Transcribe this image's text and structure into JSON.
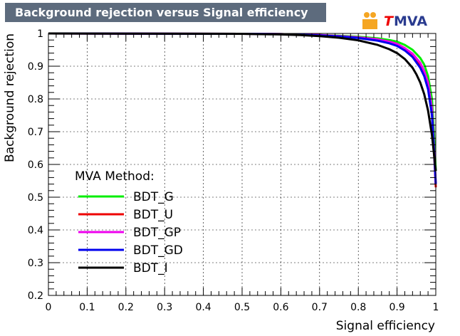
{
  "title": "Background rejection versus Signal efficiency",
  "logo_text": "MVA",
  "logo_letter": "T",
  "chart_data": {
    "type": "line",
    "title": "Background rejection versus Signal efficiency",
    "xlabel": "Signal efficiency",
    "ylabel": "Background rejection",
    "xlim": [
      0,
      1
    ],
    "ylim": [
      0.2,
      1
    ],
    "xticks": [
      "0",
      "0.1",
      "0.2",
      "0.3",
      "0.4",
      "0.5",
      "0.6",
      "0.7",
      "0.8",
      "0.9",
      "1"
    ],
    "yticks": [
      "0.2",
      "0.3",
      "0.4",
      "0.5",
      "0.6",
      "0.7",
      "0.8",
      "0.9",
      "1"
    ],
    "grid": true,
    "legend_title": "MVA Method:",
    "legend_position": "left-middle",
    "series": [
      {
        "name": "BDT_G",
        "color": "#00ee00",
        "x": [
          0,
          0.5,
          0.6,
          0.7,
          0.75,
          0.8,
          0.85,
          0.88,
          0.9,
          0.92,
          0.94,
          0.96,
          0.97,
          0.98,
          0.99,
          0.995,
          1.0
        ],
        "y": [
          1,
          0.999,
          0.998,
          0.995,
          0.993,
          0.99,
          0.985,
          0.98,
          0.975,
          0.965,
          0.95,
          0.925,
          0.905,
          0.87,
          0.8,
          0.7,
          0.58
        ]
      },
      {
        "name": "BDT_U",
        "color": "#ee0000",
        "x": [
          0,
          0.5,
          0.6,
          0.7,
          0.75,
          0.8,
          0.85,
          0.88,
          0.9,
          0.92,
          0.94,
          0.96,
          0.97,
          0.98,
          0.99,
          0.995,
          1.0
        ],
        "y": [
          1,
          0.999,
          0.998,
          0.995,
          0.992,
          0.988,
          0.982,
          0.975,
          0.968,
          0.955,
          0.935,
          0.905,
          0.88,
          0.84,
          0.76,
          0.65,
          0.53
        ]
      },
      {
        "name": "BDT_GP",
        "color": "#ee00ee",
        "x": [
          0,
          0.5,
          0.6,
          0.7,
          0.75,
          0.8,
          0.85,
          0.88,
          0.9,
          0.92,
          0.94,
          0.96,
          0.97,
          0.98,
          0.99,
          0.995,
          1.0
        ],
        "y": [
          1,
          0.999,
          0.998,
          0.995,
          0.992,
          0.988,
          0.982,
          0.975,
          0.968,
          0.955,
          0.938,
          0.91,
          0.885,
          0.85,
          0.77,
          0.66,
          0.54
        ]
      },
      {
        "name": "BDT_GD",
        "color": "#0000ee",
        "x": [
          0,
          0.5,
          0.6,
          0.7,
          0.75,
          0.8,
          0.85,
          0.88,
          0.9,
          0.92,
          0.94,
          0.96,
          0.97,
          0.98,
          0.99,
          0.995,
          1.0
        ],
        "y": [
          1,
          0.999,
          0.998,
          0.994,
          0.991,
          0.986,
          0.978,
          0.97,
          0.962,
          0.948,
          0.928,
          0.895,
          0.87,
          0.83,
          0.75,
          0.65,
          0.54
        ]
      },
      {
        "name": "BDT_I",
        "color": "#000000",
        "x": [
          0,
          0.5,
          0.6,
          0.65,
          0.7,
          0.75,
          0.8,
          0.85,
          0.88,
          0.9,
          0.92,
          0.94,
          0.95,
          0.96,
          0.97,
          0.98,
          0.99,
          1.0
        ],
        "y": [
          1,
          0.999,
          0.997,
          0.995,
          0.992,
          0.987,
          0.979,
          0.965,
          0.952,
          0.94,
          0.922,
          0.895,
          0.875,
          0.85,
          0.815,
          0.765,
          0.69,
          0.58
        ]
      }
    ]
  }
}
